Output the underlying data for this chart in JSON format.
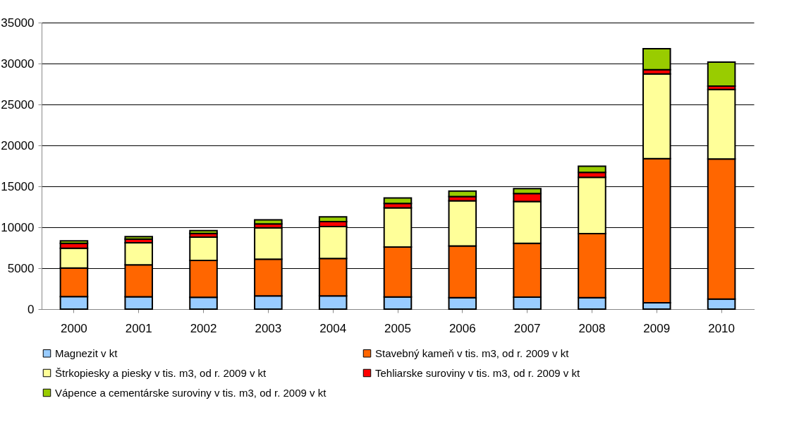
{
  "chart_data": {
    "type": "bar",
    "stacked": true,
    "categories": [
      "2000",
      "2001",
      "2002",
      "2003",
      "2004",
      "2005",
      "2006",
      "2007",
      "2008",
      "2009",
      "2010"
    ],
    "series": [
      {
        "name": "Magnezit v kt",
        "color": "#99ccff",
        "values": [
          1530,
          1500,
          1440,
          1610,
          1610,
          1490,
          1400,
          1470,
          1400,
          780,
          1220
        ]
      },
      {
        "name": "Stavebný kameň v tis. m3, od r. 2009 v kt",
        "color": "#ff6600",
        "values": [
          3500,
          3900,
          4510,
          4480,
          4570,
          6090,
          6320,
          6560,
          7820,
          17610,
          17120
        ]
      },
      {
        "name": "Štrkopiesky a piesky v tis. m3, od r. 2009 v kt",
        "color": "#ffff99",
        "values": [
          2400,
          2700,
          2850,
          3850,
          3910,
          4790,
          5510,
          5110,
          6880,
          10340,
          8500
        ]
      },
      {
        "name": "Tehliarske suroviny v tis. m3, od r. 2009 v kt",
        "color": "#ff0000",
        "values": [
          600,
          460,
          450,
          460,
          600,
          530,
          520,
          980,
          600,
          520,
          400
        ]
      },
      {
        "name": "Vápence a cementárske suroviny v tis. m3, od r. 2009 v kt",
        "color": "#99cc00",
        "values": [
          300,
          290,
          350,
          500,
          580,
          670,
          670,
          610,
          760,
          2560,
          2930
        ]
      }
    ],
    "ylim": [
      0,
      35000
    ],
    "yticks": [
      0,
      5000,
      10000,
      15000,
      20000,
      25000,
      30000,
      35000
    ],
    "grid": "y",
    "legend": "bottom"
  }
}
